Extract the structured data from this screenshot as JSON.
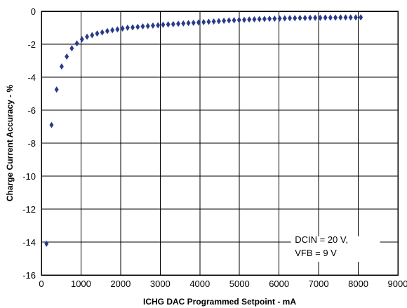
{
  "chart_data": {
    "type": "scatter",
    "xlabel": "ICHG DAC Programmed Setpoint - mA",
    "ylabel": "Charge Current Accuracy - %",
    "xlim": [
      0,
      9000
    ],
    "ylim": [
      -16,
      0
    ],
    "x_ticks": [
      0,
      1000,
      2000,
      3000,
      4000,
      5000,
      6000,
      7000,
      8000,
      9000
    ],
    "y_ticks": [
      0,
      -2,
      -4,
      -6,
      -8,
      -10,
      -12,
      -14,
      -16
    ],
    "grid": true,
    "marker": "diamond",
    "series_color": "#2b3a8c",
    "annotation_lines": [
      "DCIN = 20 V,",
      "VFB = 9 V"
    ],
    "points": [
      [
        128,
        -14.1
      ],
      [
        256,
        -6.9
      ],
      [
        384,
        -4.75
      ],
      [
        512,
        -3.35
      ],
      [
        640,
        -2.75
      ],
      [
        768,
        -2.25
      ],
      [
        896,
        -1.95
      ],
      [
        1024,
        -1.7
      ],
      [
        1152,
        -1.55
      ],
      [
        1280,
        -1.45
      ],
      [
        1408,
        -1.35
      ],
      [
        1536,
        -1.28
      ],
      [
        1664,
        -1.2
      ],
      [
        1792,
        -1.15
      ],
      [
        1920,
        -1.1
      ],
      [
        2048,
        -1.05
      ],
      [
        2176,
        -1.0
      ],
      [
        2304,
        -0.98
      ],
      [
        2432,
        -0.95
      ],
      [
        2560,
        -0.92
      ],
      [
        2688,
        -0.9
      ],
      [
        2816,
        -0.87
      ],
      [
        2944,
        -0.85
      ],
      [
        3072,
        -0.82
      ],
      [
        3200,
        -0.8
      ],
      [
        3328,
        -0.78
      ],
      [
        3456,
        -0.76
      ],
      [
        3584,
        -0.74
      ],
      [
        3712,
        -0.72
      ],
      [
        3840,
        -0.7
      ],
      [
        3968,
        -0.68
      ],
      [
        4096,
        -0.66
      ],
      [
        4224,
        -0.64
      ],
      [
        4352,
        -0.62
      ],
      [
        4480,
        -0.6
      ],
      [
        4608,
        -0.58
      ],
      [
        4736,
        -0.56
      ],
      [
        4864,
        -0.55
      ],
      [
        4992,
        -0.53
      ],
      [
        5120,
        -0.52
      ],
      [
        5248,
        -0.5
      ],
      [
        5376,
        -0.49
      ],
      [
        5504,
        -0.48
      ],
      [
        5632,
        -0.47
      ],
      [
        5760,
        -0.46
      ],
      [
        5888,
        -0.45
      ],
      [
        6016,
        -0.44
      ],
      [
        6144,
        -0.43
      ],
      [
        6272,
        -0.42
      ],
      [
        6400,
        -0.42
      ],
      [
        6528,
        -0.41
      ],
      [
        6656,
        -0.41
      ],
      [
        6784,
        -0.4
      ],
      [
        6912,
        -0.4
      ],
      [
        7040,
        -0.4
      ],
      [
        7168,
        -0.39
      ],
      [
        7296,
        -0.39
      ],
      [
        7424,
        -0.39
      ],
      [
        7552,
        -0.38
      ],
      [
        7680,
        -0.38
      ],
      [
        7808,
        -0.38
      ],
      [
        7936,
        -0.38
      ],
      [
        8064,
        -0.37
      ]
    ]
  }
}
